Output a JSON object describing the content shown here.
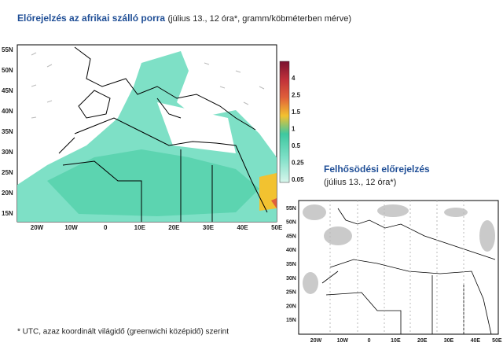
{
  "main_map": {
    "title": "Előrejelzés az afrikai szálló porra",
    "subtitle": "(július 13., 12 óra*, gramm/köbméterben mérve)",
    "lat_labels": [
      "55N",
      "50N",
      "45N",
      "40N",
      "35N",
      "30N",
      "25N",
      "20N",
      "15N"
    ],
    "lon_labels": [
      "20W",
      "10W",
      "0",
      "10E",
      "20E",
      "30E",
      "40E",
      "50E"
    ],
    "colorbar_labels": [
      "4",
      "2.5",
      "1.5",
      "1",
      "0.5",
      "0.25",
      "0.05"
    ]
  },
  "cloud_map": {
    "title": "Felhősödési előrejelzés",
    "subtitle": "(július 13., 12 óra*)",
    "lat_labels": [
      "55N",
      "50N",
      "45N",
      "40N",
      "35N",
      "30N",
      "25N",
      "20N",
      "15N"
    ],
    "lon_labels": [
      "20W",
      "10W",
      "0",
      "10E",
      "20E",
      "30E",
      "40E",
      "50E"
    ]
  },
  "footnote": "* UTC, azaz koordinált világidő (greenwichi középidő) szerint"
}
